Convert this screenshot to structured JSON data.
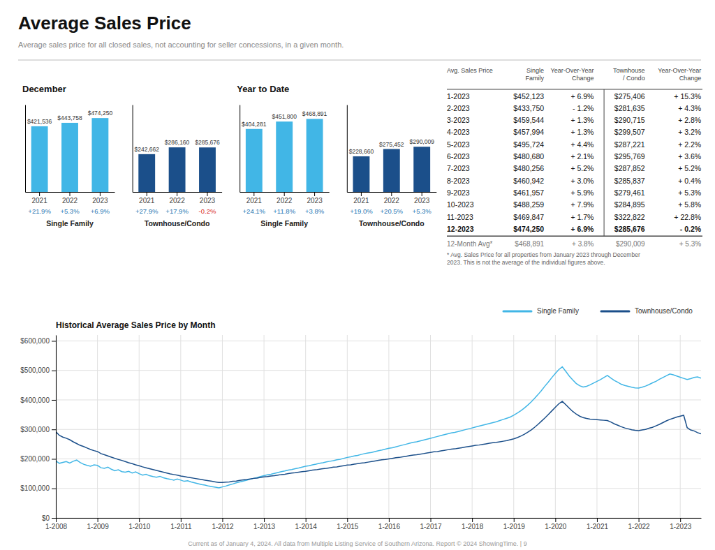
{
  "title": "Average Sales Price",
  "subtitle": "Average sales price for all closed sales, not accounting for seller concessions, in a given month.",
  "footer": "Current as of January 4, 2024. All data from Multiple Listing Service of Southern Arizona. Report © 2024 ShowingTime. | 9",
  "chart_data": [
    {
      "type": "bar",
      "group": "December",
      "title": "Single Family",
      "categories": [
        "2021",
        "2022",
        "2023"
      ],
      "values": [
        421536,
        443758,
        474250
      ],
      "value_labels": [
        "$421,536",
        "$443,758",
        "$474,250"
      ],
      "annotations": [
        "+21.9%",
        "+5.3%",
        "+6.9%"
      ],
      "color": "#41B6E6",
      "ylim": [
        0,
        560000
      ],
      "data_labels": true,
      "tick_labels": "x"
    },
    {
      "type": "bar",
      "group": "December",
      "title": "Townhouse/Condo",
      "categories": [
        "2021",
        "2022",
        "2023"
      ],
      "values": [
        242662,
        286160,
        285676
      ],
      "value_labels": [
        "$242,662",
        "$286,160",
        "$285,676"
      ],
      "annotations": [
        "+27.9%",
        "+17.9%",
        "-0.2%"
      ],
      "color": "#1B4F8A",
      "ylim": [
        0,
        560000
      ],
      "data_labels": true,
      "tick_labels": "x"
    },
    {
      "type": "bar",
      "group": "Year to Date",
      "title": "Single Family",
      "categories": [
        "2021",
        "2022",
        "2023"
      ],
      "values": [
        404281,
        451800,
        468891
      ],
      "value_labels": [
        "$404,281",
        "$451,800",
        "$468,891"
      ],
      "annotations": [
        "+24.1%",
        "+11.8%",
        "+3.8%"
      ],
      "color": "#41B6E6",
      "ylim": [
        0,
        560000
      ],
      "data_labels": true,
      "tick_labels": "x"
    },
    {
      "type": "bar",
      "group": "Year to Date",
      "title": "Townhouse/Condo",
      "categories": [
        "2021",
        "2022",
        "2023"
      ],
      "values": [
        228660,
        275452,
        290009
      ],
      "value_labels": [
        "$228,660",
        "$275,452",
        "$290,009"
      ],
      "annotations": [
        "+19.0%",
        "+20.5%",
        "+5.3%"
      ],
      "color": "#1B4F8A",
      "ylim": [
        0,
        560000
      ],
      "data_labels": true,
      "tick_labels": "x"
    },
    {
      "type": "table",
      "columns": [
        "Avg. Sales Price",
        "Single\nFamily",
        "Year-Over-Year\nChange",
        "Townhouse\n/ Condo",
        "Year-Over-Year\nChange"
      ],
      "rows": [
        [
          "1-2023",
          "$452,123",
          "+ 6.9%",
          "$275,406",
          "+ 15.3%"
        ],
        [
          "2-2023",
          "$433,750",
          "- 1.2%",
          "$281,635",
          "+ 4.3%"
        ],
        [
          "3-2023",
          "$459,544",
          "+ 1.3%",
          "$290,715",
          "+ 2.8%"
        ],
        [
          "4-2023",
          "$457,994",
          "+ 1.3%",
          "$299,507",
          "+ 3.2%"
        ],
        [
          "5-2023",
          "$495,724",
          "+ 4.4%",
          "$287,221",
          "+ 2.2%"
        ],
        [
          "6-2023",
          "$480,680",
          "+ 2.1%",
          "$295,769",
          "+ 3.6%"
        ],
        [
          "7-2023",
          "$480,256",
          "+ 5.2%",
          "$287,852",
          "+ 5.2%"
        ],
        [
          "8-2023",
          "$460,942",
          "+ 3.0%",
          "$285,837",
          "+ 0.4%"
        ],
        [
          "9-2023",
          "$461,957",
          "+ 5.9%",
          "$279,461",
          "+ 5.3%"
        ],
        [
          "10-2023",
          "$488,259",
          "+ 7.9%",
          "$284,895",
          "+ 5.8%"
        ],
        [
          "11-2023",
          "$469,847",
          "+ 1.7%",
          "$322,822",
          "+ 22.8%"
        ],
        [
          "12-2023",
          "$474,250",
          "+ 6.9%",
          "$285,676",
          "- 0.2%"
        ]
      ],
      "summary_row": [
        "12-Month Avg*",
        "$468,891",
        "+ 3.8%",
        "$290,009",
        "+ 5.3%"
      ],
      "note": "* Avg. Sales Price for all properties from January 2023 through December\n2023. This is not the average of the individual figures above."
    },
    {
      "type": "line",
      "title": "Historical Average Sales Price by Month",
      "categories": [
        "1-2008",
        null,
        null,
        null,
        null,
        null,
        null,
        null,
        null,
        null,
        null,
        null,
        "1-2009",
        null,
        null,
        null,
        null,
        null,
        null,
        null,
        null,
        null,
        null,
        null,
        "1-2010",
        null,
        null,
        null,
        null,
        null,
        null,
        null,
        null,
        null,
        null,
        null,
        "1-2011",
        null,
        null,
        null,
        null,
        null,
        null,
        null,
        null,
        null,
        null,
        null,
        "1-2012",
        null,
        null,
        null,
        null,
        null,
        null,
        null,
        null,
        null,
        null,
        null,
        "1-2013",
        null,
        null,
        null,
        null,
        null,
        null,
        null,
        null,
        null,
        null,
        null,
        "1-2014",
        null,
        null,
        null,
        null,
        null,
        null,
        null,
        null,
        null,
        null,
        null,
        "1-2015",
        null,
        null,
        null,
        null,
        null,
        null,
        null,
        null,
        null,
        null,
        null,
        "1-2016",
        null,
        null,
        null,
        null,
        null,
        null,
        null,
        null,
        null,
        null,
        null,
        "1-2017",
        null,
        null,
        null,
        null,
        null,
        null,
        null,
        null,
        null,
        null,
        null,
        "1-2018",
        null,
        null,
        null,
        null,
        null,
        null,
        null,
        null,
        null,
        null,
        null,
        "1-2019",
        null,
        null,
        null,
        null,
        null,
        null,
        null,
        null,
        null,
        null,
        null,
        "1-2020",
        null,
        null,
        null,
        null,
        null,
        null,
        null,
        null,
        null,
        null,
        null,
        "1-2021",
        null,
        null,
        null,
        null,
        null,
        null,
        null,
        null,
        null,
        null,
        null,
        "1-2022",
        null,
        null,
        null,
        null,
        null,
        null,
        null,
        null,
        null,
        null,
        null,
        "1-2023",
        null,
        null,
        null,
        null,
        null,
        null
      ],
      "series": [
        {
          "name": "Single Family",
          "color": "#41B6E6",
          "values": [
            193000,
            185000,
            188000,
            191000,
            186000,
            192000,
            196000,
            188000,
            182000,
            178000,
            175000,
            180000,
            178000,
            170000,
            168000,
            172000,
            165000,
            160000,
            163000,
            157000,
            155000,
            158000,
            152000,
            156000,
            150000,
            145000,
            148000,
            143000,
            140000,
            138000,
            141000,
            136000,
            133000,
            131000,
            128000,
            132000,
            128000,
            124000,
            126000,
            122000,
            119000,
            116000,
            113000,
            111000,
            108000,
            106000,
            104000,
            102000,
            105000,
            108000,
            112000,
            115000,
            119000,
            122000,
            125000,
            128000,
            131000,
            134000,
            137000,
            140000,
            143000,
            146000,
            148000,
            151000,
            154000,
            157000,
            159000,
            162000,
            164000,
            167000,
            169000,
            172000,
            175000,
            177000,
            180000,
            182000,
            185000,
            187000,
            190000,
            192000,
            194000,
            197000,
            199000,
            202000,
            205000,
            207000,
            210000,
            212000,
            215000,
            218000,
            220000,
            222000,
            225000,
            228000,
            230000,
            233000,
            236000,
            238000,
            241000,
            244000,
            247000,
            250000,
            253000,
            256000,
            258000,
            261000,
            264000,
            267000,
            270000,
            273000,
            276000,
            279000,
            282000,
            285000,
            288000,
            290000,
            293000,
            296000,
            299000,
            302000,
            305000,
            308000,
            311000,
            314000,
            317000,
            320000,
            323000,
            326000,
            330000,
            334000,
            338000,
            342000,
            348000,
            355000,
            363000,
            372000,
            382000,
            393000,
            405000,
            418000,
            432000,
            447000,
            461000,
            476000,
            490000,
            503000,
            512000,
            497000,
            481000,
            468000,
            456000,
            448000,
            444000,
            446000,
            451000,
            457000,
            463000,
            469000,
            476000,
            483000,
            474000,
            466000,
            460000,
            453000,
            449000,
            446000,
            443000,
            441000,
            440000,
            443000,
            447000,
            452000,
            458000,
            463000,
            470000,
            476000,
            482000,
            488000,
            485000,
            481000,
            477000,
            473000,
            469000,
            472000,
            476000,
            478000,
            474000
          ]
        },
        {
          "name": "Townhouse/Condo",
          "color": "#1B4F8A",
          "values": [
            292000,
            280000,
            274000,
            270000,
            265000,
            258000,
            252000,
            246000,
            242000,
            237000,
            232000,
            228000,
            225000,
            218000,
            214000,
            210000,
            206000,
            202000,
            198000,
            195000,
            191000,
            187000,
            184000,
            180000,
            177000,
            173000,
            170000,
            167000,
            164000,
            161000,
            158000,
            155000,
            152000,
            149000,
            147000,
            145000,
            142000,
            140000,
            138000,
            136000,
            134000,
            132000,
            130000,
            128000,
            126000,
            124000,
            122000,
            120000,
            120000,
            121000,
            122000,
            124000,
            125000,
            127000,
            129000,
            130000,
            132000,
            134000,
            135000,
            137000,
            139000,
            140000,
            142000,
            143000,
            145000,
            147000,
            148000,
            150000,
            152000,
            153000,
            155000,
            157000,
            158000,
            160000,
            162000,
            163000,
            165000,
            167000,
            168000,
            170000,
            172000,
            173000,
            175000,
            177000,
            179000,
            180000,
            182000,
            184000,
            186000,
            187000,
            189000,
            191000,
            193000,
            195000,
            197000,
            198000,
            200000,
            202000,
            204000,
            205000,
            207000,
            209000,
            211000,
            213000,
            214000,
            216000,
            218000,
            220000,
            222000,
            224000,
            225000,
            227000,
            229000,
            231000,
            233000,
            234000,
            236000,
            238000,
            240000,
            242000,
            244000,
            246000,
            247000,
            249000,
            251000,
            253000,
            255000,
            256000,
            258000,
            260000,
            262000,
            265000,
            268000,
            272000,
            277000,
            283000,
            290000,
            298000,
            307000,
            317000,
            328000,
            339000,
            351000,
            363000,
            375000,
            387000,
            395000,
            384000,
            372000,
            361000,
            352000,
            345000,
            340000,
            337000,
            335000,
            334000,
            333000,
            332000,
            331000,
            330000,
            325000,
            319000,
            314000,
            309000,
            305000,
            302000,
            299000,
            297000,
            296000,
            298000,
            300000,
            304000,
            307000,
            312000,
            317000,
            323000,
            329000,
            334000,
            338000,
            342000,
            345000,
            348000,
            306000,
            298000,
            295000,
            289000,
            285000
          ]
        }
      ],
      "ylim": [
        0,
        620000
      ],
      "yticks": [
        {
          "value": 0,
          "label": "$0"
        },
        {
          "value": 100000,
          "label": "$100,000"
        },
        {
          "value": 200000,
          "label": "$200,000"
        },
        {
          "value": 300000,
          "label": "$300,000"
        },
        {
          "value": 400000,
          "label": "$400,000"
        },
        {
          "value": 500000,
          "label": "$500,000"
        },
        {
          "value": 600000,
          "label": "$600,000"
        }
      ],
      "grid": true
    }
  ]
}
